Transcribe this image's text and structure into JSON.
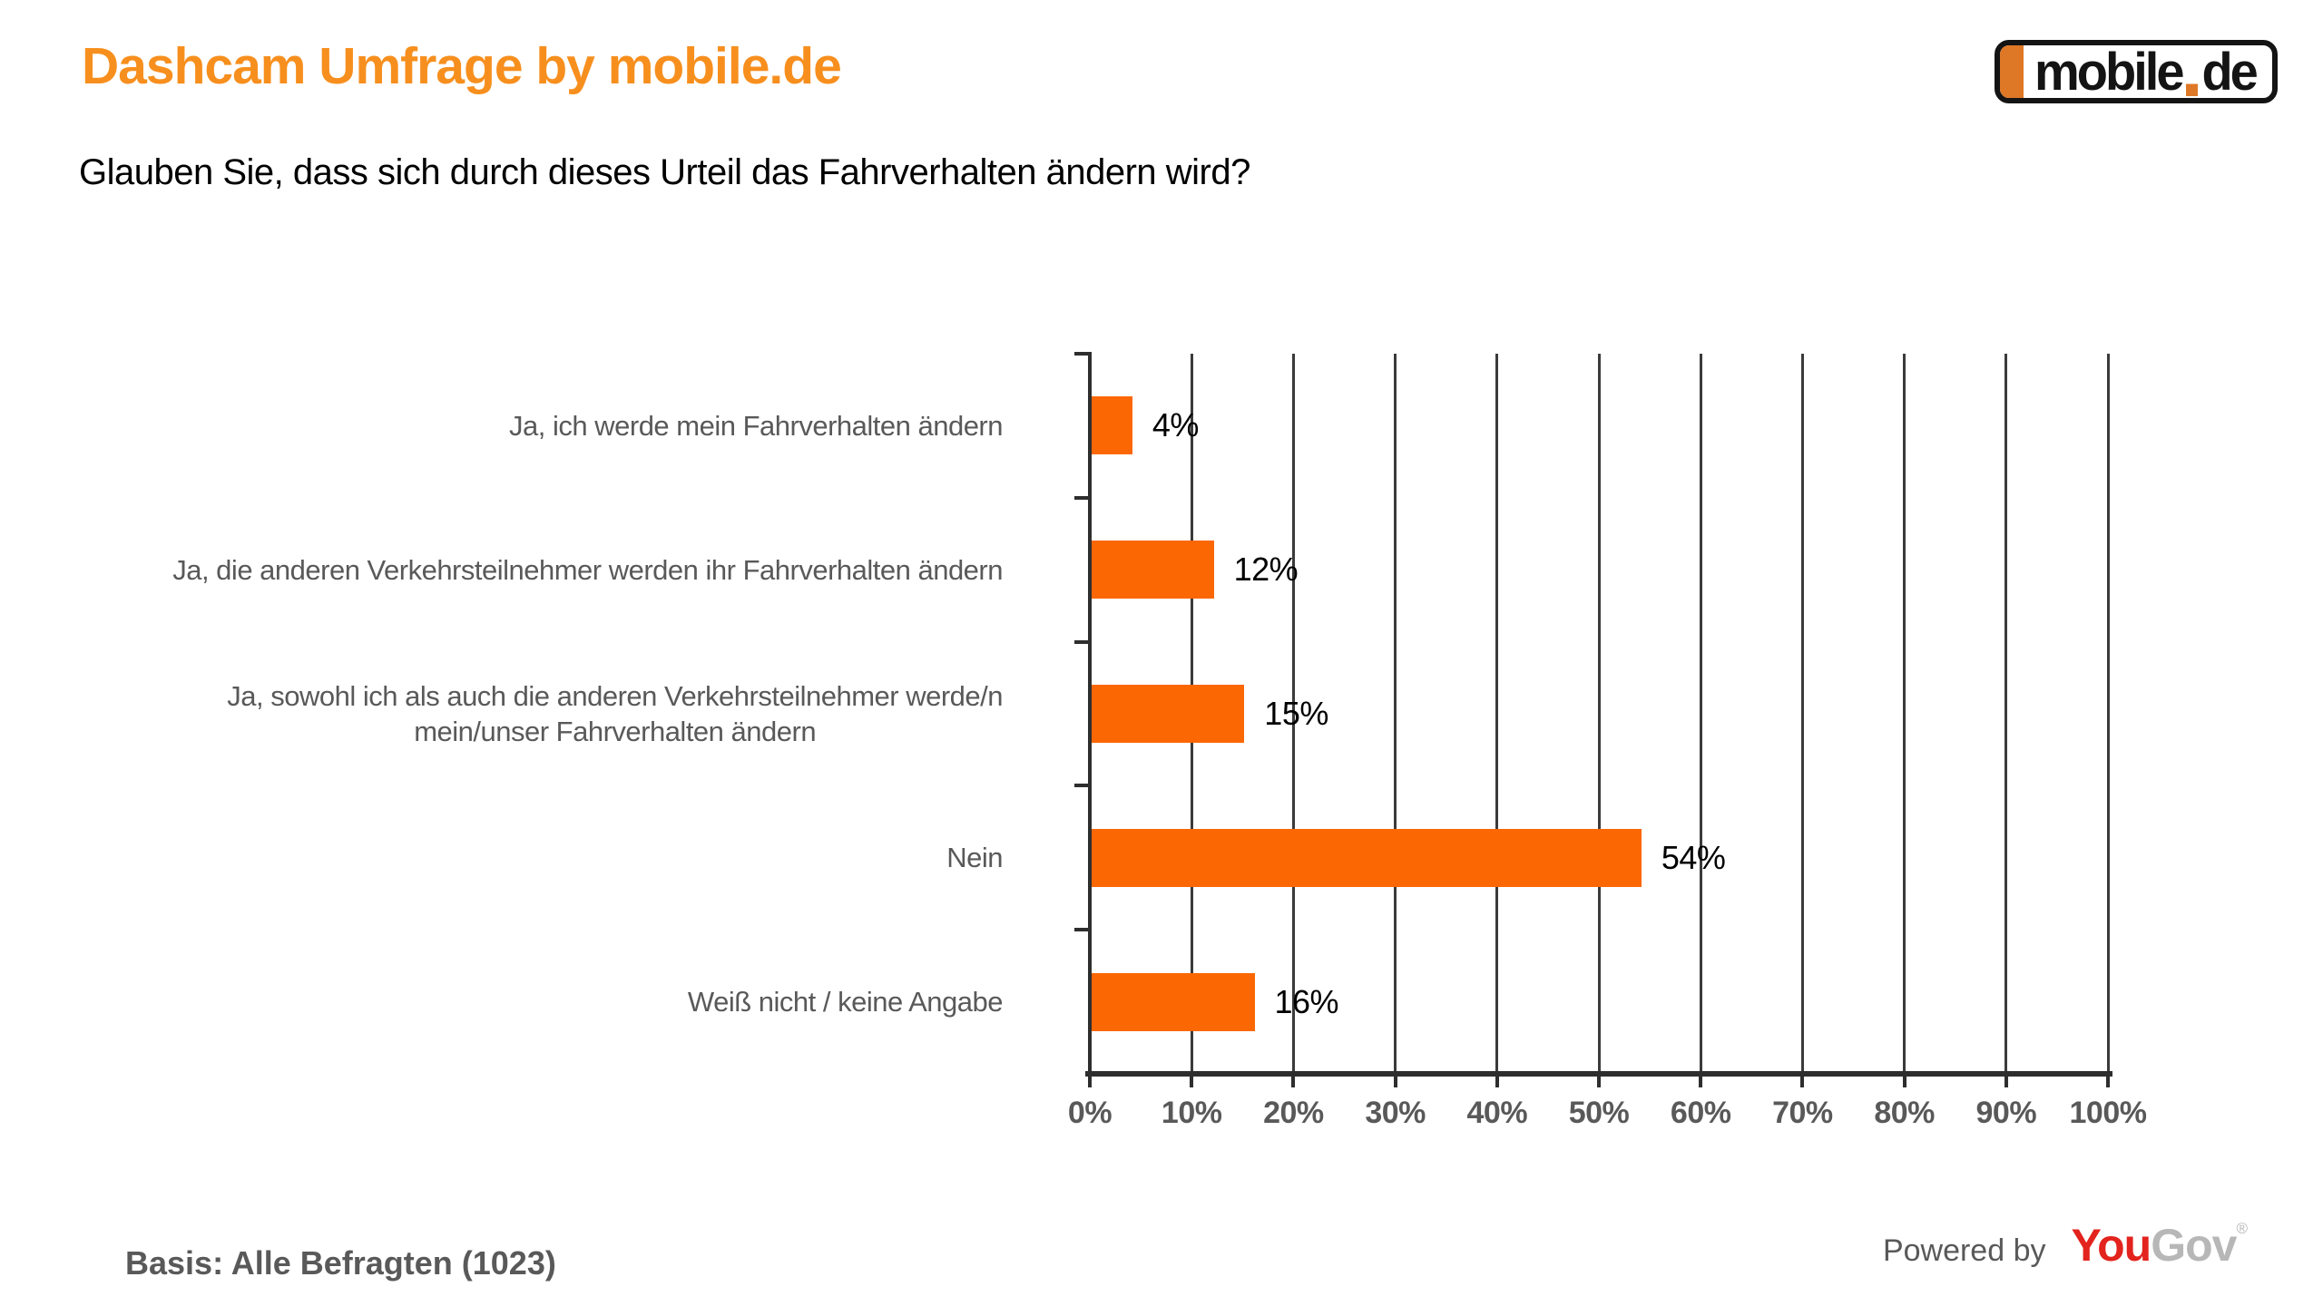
{
  "header": {
    "title": "Dashcam Umfrage by mobile.de",
    "question": "Glauben Sie, dass sich durch dieses Urteil das Fahrverhalten ändern wird?"
  },
  "brand_logo": {
    "name": "mobile.de",
    "text_main": "mobile",
    "text_tld": "de"
  },
  "footer": {
    "basis": "Basis: Alle Befragten (1023)",
    "powered_by": "Powered by",
    "yougov_you": "You",
    "yougov_gov": "Gov",
    "yougov_registered": "®"
  },
  "colors": {
    "page_bg": "#FFFFFF",
    "title": "#F78F1E",
    "bar": "#FB6702",
    "logo_orange": "#DE7826",
    "text_gray": "#595959",
    "axis": "#2E2E2E",
    "grid": "#3B3B3B",
    "value_text": "#000000",
    "yougov_red": "#E3231E",
    "yougov_gray": "#B7B7B7"
  },
  "chart_data": {
    "type": "bar",
    "orientation": "horizontal",
    "title": "",
    "xlabel": "",
    "ylabel": "",
    "categories": [
      "Ja, ich werde mein Fahrverhalten ändern",
      "Ja, die anderen Verkehrsteilnehmer werden ihr Fahrverhalten ändern",
      "Ja, sowohl ich als auch die anderen Verkehrsteilnehmer werde/n\nmein/unser Fahrverhalten ändern",
      "Nein",
      "Weiß nicht / keine Angabe"
    ],
    "values": [
      4,
      12,
      15,
      54,
      16
    ],
    "value_labels": [
      "4%",
      "12%",
      "15%",
      "54%",
      "16%"
    ],
    "x_ticks": [
      "0%",
      "10%",
      "20%",
      "30%",
      "40%",
      "50%",
      "60%",
      "70%",
      "80%",
      "90%",
      "100%"
    ],
    "xlim": [
      0,
      100
    ],
    "grid": true,
    "legend": false,
    "bar_color": "#FB6702"
  }
}
